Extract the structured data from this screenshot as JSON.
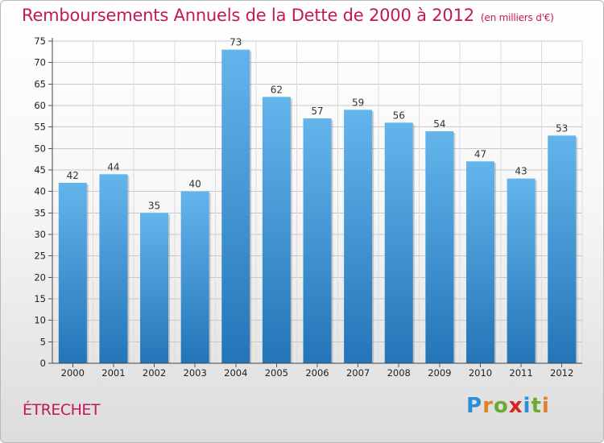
{
  "header": {
    "title": "Remboursements Annuels de la Dette de 2000 à 2012",
    "subtitle": "(en milliers d'€)"
  },
  "commune": "ÉTRECHET",
  "brand": {
    "name": "Proxiti",
    "letters": [
      "P",
      "r",
      "o",
      "x",
      "i",
      "t",
      "i"
    ],
    "letter_colors": [
      "#2a8fd6",
      "#e0822a",
      "#6cab2f",
      "#d9261c",
      "#2a8fd6",
      "#6cab2f",
      "#e0822a"
    ]
  },
  "colors": {
    "bar_top": "#64b4ec",
    "bar_bottom": "#2475b8",
    "title": "#c2185b",
    "grid": "#c8c8c8"
  },
  "chart_data": {
    "type": "bar",
    "title": "Remboursements Annuels de la Dette de 2000 à 2012",
    "xlabel": "",
    "ylabel": "",
    "ylim": [
      0,
      75
    ],
    "yticks": [
      0,
      5,
      10,
      15,
      20,
      25,
      30,
      35,
      40,
      45,
      50,
      55,
      60,
      65,
      70,
      75
    ],
    "grid": true,
    "categories": [
      "2000",
      "2001",
      "2002",
      "2003",
      "2004",
      "2005",
      "2006",
      "2007",
      "2008",
      "2009",
      "2010",
      "2011",
      "2012"
    ],
    "values": [
      42,
      44,
      35,
      40,
      73,
      62,
      57,
      59,
      56,
      54,
      47,
      43,
      53
    ]
  }
}
